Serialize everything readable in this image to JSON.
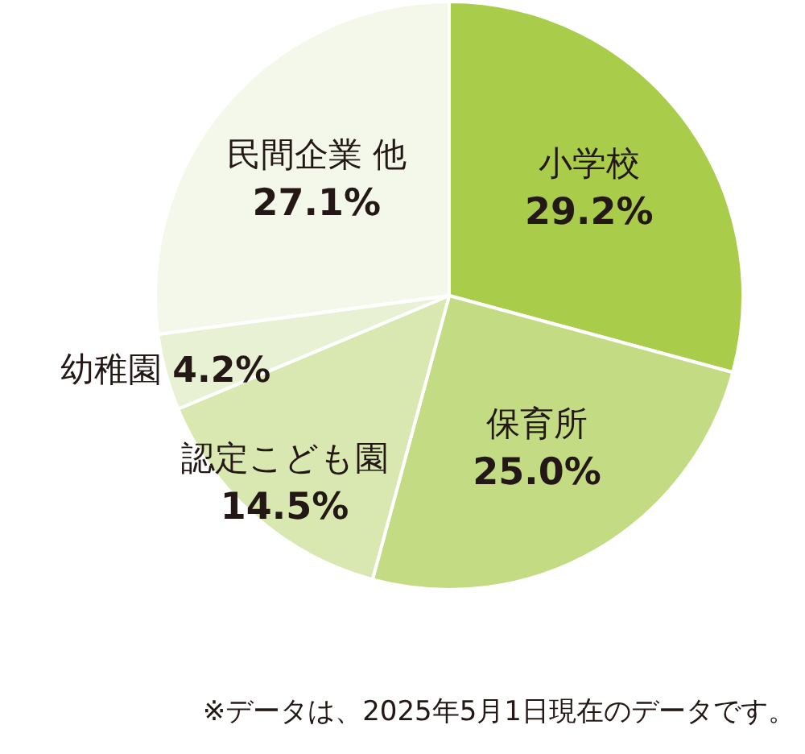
{
  "chart_data": {
    "type": "pie",
    "categories": [
      "小学校",
      "保育所",
      "認定こども園",
      "幼稚園",
      "民間企業 他"
    ],
    "values": [
      29.2,
      25.0,
      14.5,
      4.2,
      27.1
    ],
    "value_labels": [
      "29.2%",
      "25.0%",
      "14.5%",
      "4.2%",
      "27.1%"
    ],
    "colors": [
      "#a9cd4b",
      "#c3dc83",
      "#d9e8b1",
      "#e9f1d4",
      "#f4f8ea"
    ],
    "data_labels": true,
    "legend": false,
    "annotations": [
      "※データは、2025年5月1日現在のデータです。"
    ]
  }
}
